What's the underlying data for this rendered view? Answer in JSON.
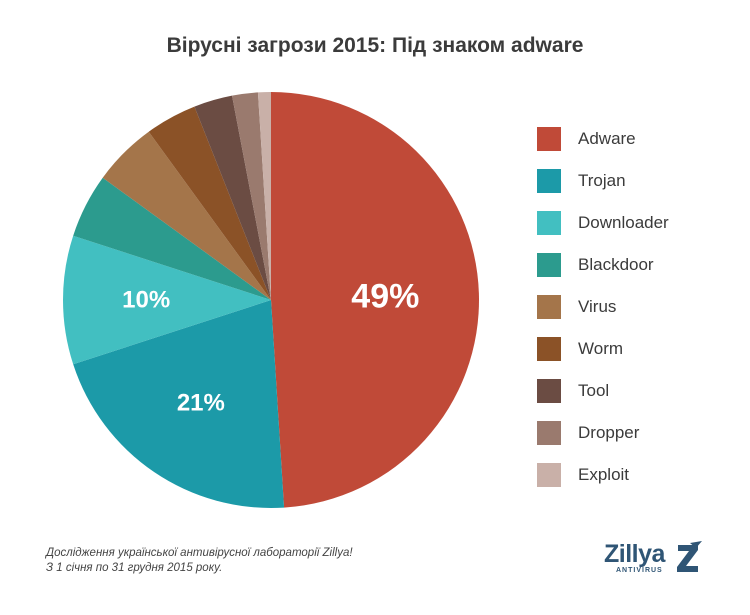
{
  "title": "Вірусні загрози 2015: Під знаком adware",
  "chart_data": {
    "type": "pie",
    "title": "Вірусні загрози 2015: Під знаком adware",
    "slices": [
      {
        "label": "Adware",
        "value": 49,
        "color": "#c04a38",
        "data_label": "49%"
      },
      {
        "label": "Trojan",
        "value": 21,
        "color": "#1c9aa8",
        "data_label": "21%"
      },
      {
        "label": "Downloader",
        "value": 10,
        "color": "#42bfc1",
        "data_label": "10%"
      },
      {
        "label": "Blackdoor",
        "value": 5,
        "color": "#2c9b8e",
        "data_label": ""
      },
      {
        "label": "Virus",
        "value": 5,
        "color": "#a4754a",
        "data_label": ""
      },
      {
        "label": "Worm",
        "value": 4,
        "color": "#8b5227",
        "data_label": ""
      },
      {
        "label": "Tool",
        "value": 3,
        "color": "#6b4c43",
        "data_label": ""
      },
      {
        "label": "Dropper",
        "value": 2,
        "color": "#9a7a6e",
        "data_label": ""
      },
      {
        "label": "Exploit",
        "value": 1,
        "color": "#c9b0a8",
        "data_label": ""
      }
    ],
    "legend_position": "right"
  },
  "footnote": {
    "line1": "Дослідження української антивірусної лабораторії Zillya!",
    "line2": "З 1 січня по 31 грудня 2015 року."
  },
  "logo": {
    "wordmark": "Zillya",
    "subtitle": "ANTIVIRUS",
    "color": "#2f5575"
  }
}
